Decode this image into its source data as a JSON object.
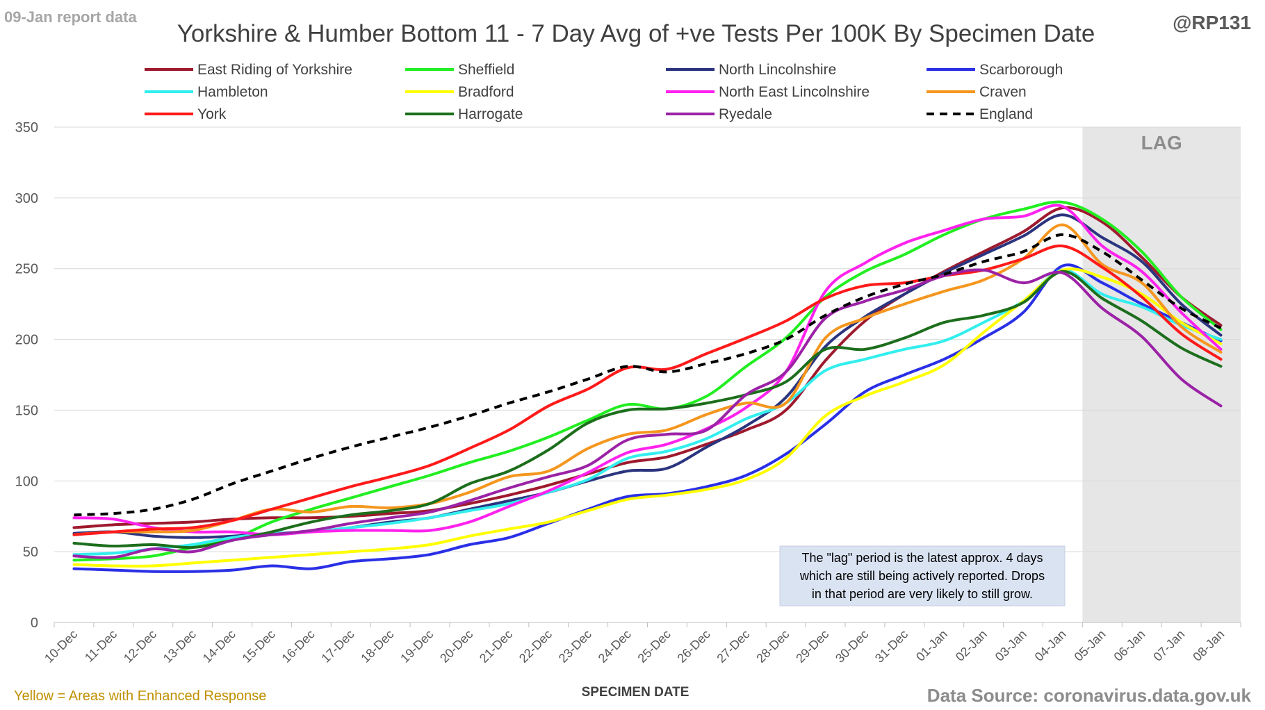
{
  "header": {
    "report_label": "09-Jan report data",
    "title": "Yorkshire & Humber Bottom 11 - 7 Day Avg of +ve Tests Per 100K By Specimen Date",
    "handle": "@RP131"
  },
  "footer": {
    "note": "Yellow = Areas with Enhanced Response",
    "xlabel": "SPECIMEN DATE",
    "source": "Data Source: coronavirus.data.gov.uk"
  },
  "lag": {
    "label": "LAG",
    "start_category": "05-Jan",
    "note_lines": [
      "The \"lag\" period is the latest approx. 4 days",
      "which are still being actively reported.  Drops",
      "in that period are very likely to still grow."
    ]
  },
  "chart_data": {
    "type": "line",
    "title": "Yorkshire & Humber Bottom 11 - 7 Day Avg of +ve Tests Per 100K By Specimen Date",
    "xlabel": "SPECIMEN DATE",
    "ylabel": "",
    "ylim": [
      0,
      350
    ],
    "yticks": [
      0,
      50,
      100,
      150,
      200,
      250,
      300,
      350
    ],
    "grid": true,
    "legend_position": "top",
    "categories": [
      "10-Dec",
      "11-Dec",
      "12-Dec",
      "13-Dec",
      "14-Dec",
      "15-Dec",
      "16-Dec",
      "17-Dec",
      "18-Dec",
      "19-Dec",
      "20-Dec",
      "21-Dec",
      "22-Dec",
      "23-Dec",
      "24-Dec",
      "25-Dec",
      "26-Dec",
      "27-Dec",
      "28-Dec",
      "29-Dec",
      "30-Dec",
      "31-Dec",
      "01-Jan",
      "02-Jan",
      "03-Jan",
      "04-Jan",
      "05-Jan",
      "06-Jan",
      "07-Jan",
      "08-Jan"
    ],
    "series": [
      {
        "name": "East Riding of Yorkshire",
        "color": "#9e1a2e",
        "dashed": false,
        "values": [
          67,
          69,
          70,
          71,
          73,
          74,
          74,
          75,
          77,
          79,
          84,
          90,
          97,
          105,
          113,
          117,
          126,
          136,
          150,
          185,
          213,
          232,
          248,
          262,
          276,
          293,
          283,
          258,
          230,
          210
        ]
      },
      {
        "name": "Sheffield",
        "color": "#22ee22",
        "dashed": false,
        "values": [
          44,
          45,
          47,
          53,
          59,
          71,
          80,
          88,
          96,
          104,
          113,
          121,
          131,
          143,
          154,
          151,
          160,
          181,
          201,
          230,
          248,
          260,
          274,
          285,
          292,
          297,
          285,
          262,
          230,
          207
        ]
      },
      {
        "name": "North Lincolnshire",
        "color": "#2b347f",
        "dashed": false,
        "values": [
          63,
          64,
          61,
          60,
          61,
          63,
          64,
          67,
          71,
          74,
          80,
          86,
          92,
          100,
          107,
          109,
          124,
          139,
          159,
          195,
          216,
          232,
          247,
          260,
          273,
          288,
          272,
          255,
          225,
          203
        ]
      },
      {
        "name": "Scarborough",
        "color": "#2a30e6",
        "dashed": false,
        "values": [
          38,
          37,
          36,
          36,
          37,
          40,
          38,
          43,
          45,
          48,
          55,
          60,
          70,
          80,
          89,
          91,
          96,
          104,
          119,
          140,
          163,
          175,
          186,
          201,
          219,
          252,
          240,
          225,
          212,
          199
        ]
      },
      {
        "name": "Hambleton",
        "color": "#33eeee",
        "dashed": false,
        "values": [
          48,
          49,
          52,
          55,
          60,
          63,
          64,
          67,
          70,
          74,
          79,
          84,
          92,
          101,
          116,
          121,
          130,
          144,
          155,
          178,
          186,
          193,
          199,
          212,
          227,
          249,
          232,
          223,
          210,
          200
        ]
      },
      {
        "name": "Bradford",
        "color": "#ffff00",
        "dashed": false,
        "values": [
          41,
          40,
          40,
          42,
          44,
          46,
          48,
          50,
          52,
          55,
          61,
          66,
          71,
          79,
          87,
          90,
          94,
          101,
          116,
          146,
          160,
          170,
          182,
          205,
          227,
          249,
          244,
          232,
          212,
          197
        ]
      },
      {
        "name": "North East Lincolnshire",
        "color": "#ff22ee",
        "dashed": false,
        "values": [
          74,
          73,
          67,
          64,
          64,
          62,
          64,
          65,
          65,
          65,
          71,
          82,
          93,
          106,
          120,
          126,
          137,
          152,
          177,
          234,
          254,
          268,
          277,
          285,
          287,
          294,
          266,
          248,
          219,
          193
        ]
      },
      {
        "name": "Craven",
        "color": "#f5961e",
        "dashed": false,
        "values": [
          62,
          64,
          64,
          65,
          72,
          80,
          78,
          82,
          81,
          84,
          92,
          103,
          107,
          123,
          133,
          136,
          147,
          155,
          155,
          201,
          215,
          225,
          234,
          242,
          257,
          281,
          253,
          240,
          209,
          191
        ]
      },
      {
        "name": "York",
        "color": "#ff1a1a",
        "dashed": false,
        "values": [
          62,
          64,
          66,
          67,
          72,
          80,
          88,
          96,
          103,
          111,
          123,
          136,
          153,
          165,
          180,
          179,
          190,
          201,
          213,
          229,
          238,
          240,
          245,
          249,
          257,
          266,
          251,
          230,
          204,
          186
        ]
      },
      {
        "name": "Harrogate",
        "color": "#1c6e1c",
        "dashed": false,
        "values": [
          56,
          54,
          55,
          53,
          58,
          64,
          71,
          76,
          79,
          84,
          98,
          107,
          122,
          141,
          150,
          151,
          155,
          161,
          170,
          193,
          193,
          201,
          212,
          217,
          226,
          248,
          229,
          213,
          194,
          181
        ]
      },
      {
        "name": "Ryedale",
        "color": "#9b22a6",
        "dashed": false,
        "values": [
          47,
          46,
          52,
          50,
          58,
          62,
          65,
          70,
          74,
          78,
          86,
          95,
          103,
          111,
          129,
          133,
          136,
          161,
          177,
          215,
          227,
          235,
          245,
          249,
          240,
          247,
          222,
          202,
          172,
          153
        ]
      },
      {
        "name": "England",
        "color": "#000000",
        "dashed": true,
        "values": [
          76,
          77,
          80,
          87,
          98,
          107,
          116,
          124,
          131,
          138,
          146,
          155,
          163,
          172,
          181,
          177,
          183,
          190,
          200,
          217,
          230,
          239,
          246,
          255,
          262,
          274,
          262,
          242,
          222,
          208
        ]
      }
    ]
  }
}
